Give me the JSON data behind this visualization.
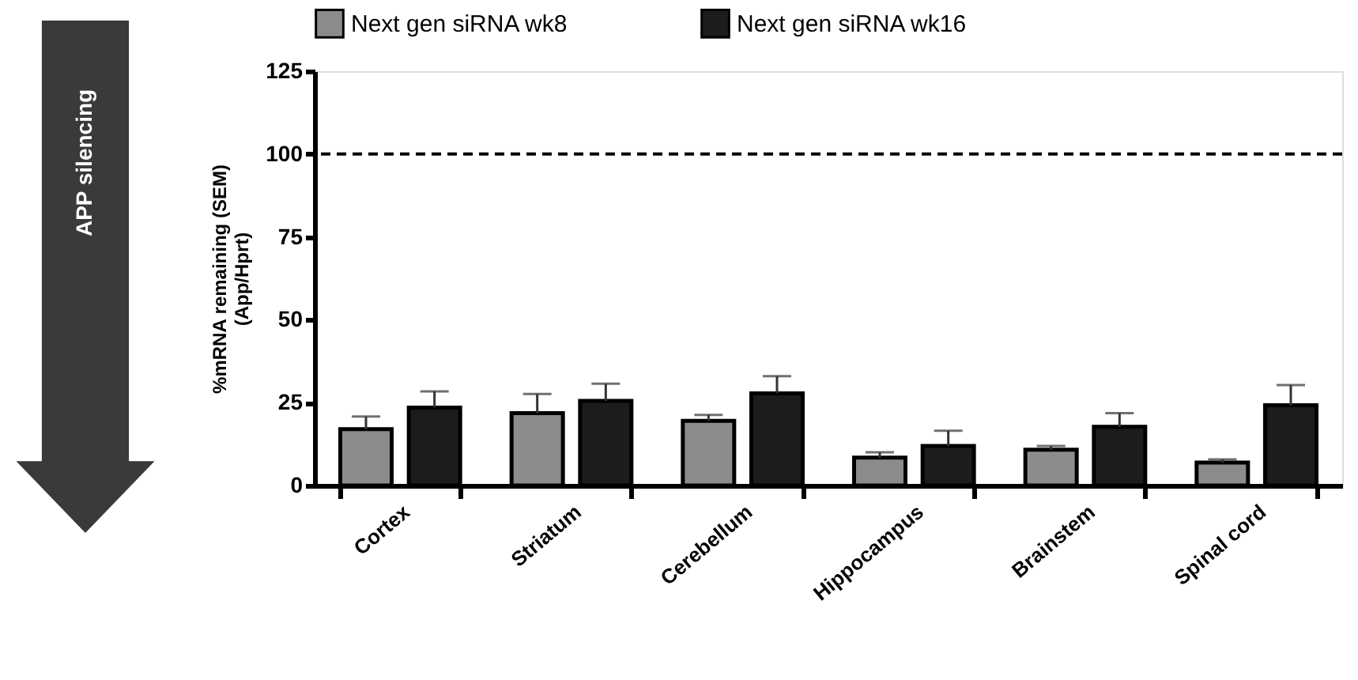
{
  "chart_data": {
    "type": "bar",
    "categories": [
      "Cortex",
      "Striatum",
      "Cerebellum",
      "Hippocampus",
      "Brainstem",
      "Spinal cord"
    ],
    "series": [
      {
        "name": "Next gen siRNA wk8",
        "color": "#8c8c8c",
        "values": [
          17.0,
          21.8,
          19.5,
          8.4,
          10.8,
          6.9
        ],
        "errors": [
          [
            17.0,
            20.8
          ],
          [
            21.8,
            27.6
          ],
          [
            19.5,
            21.3
          ],
          [
            8.4,
            10.0
          ],
          [
            10.8,
            11.9
          ],
          [
            6.9,
            7.9
          ]
        ]
      },
      {
        "name": "Next gen siRNA wk16",
        "color": "#1c1c1c",
        "values": [
          23.5,
          25.5,
          27.8,
          11.9,
          17.7,
          24.2
        ],
        "errors": [
          [
            23.5,
            28.4
          ],
          [
            25.5,
            30.7
          ],
          [
            27.8,
            33.0
          ],
          [
            11.9,
            16.5
          ],
          [
            17.7,
            21.8
          ],
          [
            24.2,
            30.3
          ]
        ]
      }
    ],
    "ylabel": "%mRNA remaining (SEM)\n(App/Hprt)",
    "ylim": [
      0,
      125
    ],
    "yticks": [
      0,
      25,
      50,
      75,
      100,
      125
    ],
    "ref_lines": [
      {
        "axis": "y",
        "value": 100,
        "line_style": "dashed",
        "color": "#000000"
      }
    ],
    "annotations": [
      "APP silencing"
    ],
    "legend": "top",
    "grid": false
  }
}
